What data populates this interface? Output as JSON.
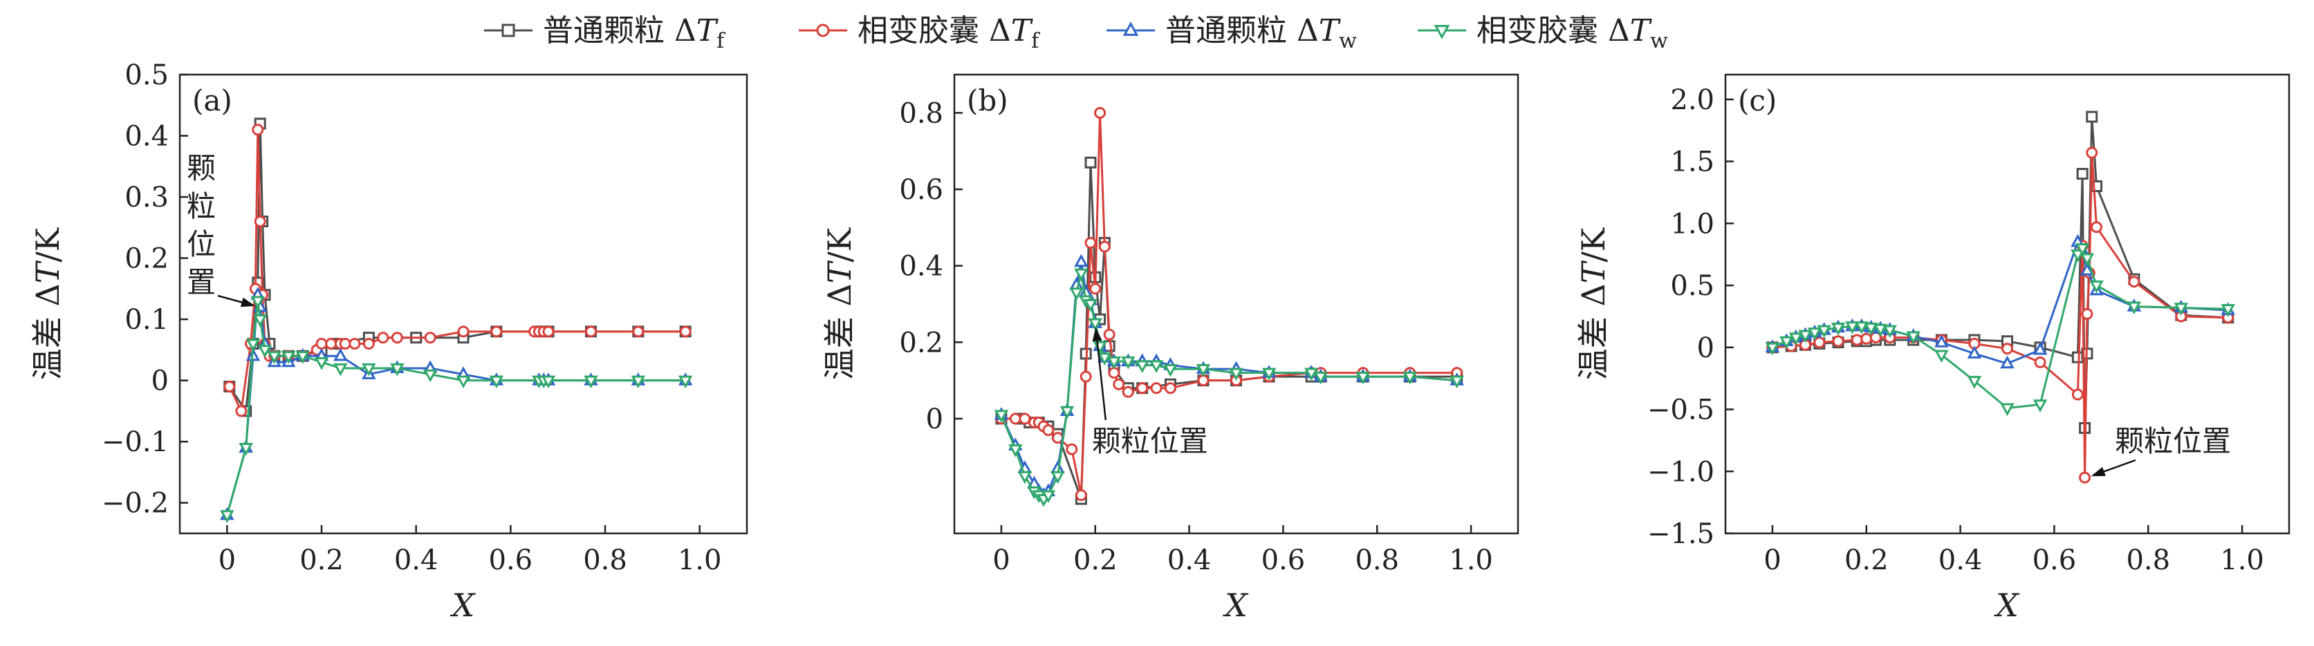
{
  "legend": [
    {
      "label": "普通颗粒 ΔTf",
      "color": "#4d4d4d",
      "marker": "square"
    },
    {
      "label": "相变胶囊 ΔTf",
      "color": "#d9403a",
      "marker": "circle"
    },
    {
      "label": "普通颗粒 ΔTw",
      "color": "#2f64c8",
      "marker": "triangle-up"
    },
    {
      "label": "相变胶囊 ΔTw",
      "color": "#2fa86a",
      "marker": "triangle-down"
    }
  ],
  "chart_data": [
    {
      "type": "line",
      "panel_label": "(a)",
      "xlabel": "X",
      "ylabel": "温差 ΔT/K",
      "xlim": [
        -0.1,
        1.1
      ],
      "ylim": [
        -0.25,
        0.5
      ],
      "xticks": [
        "0",
        "0.2",
        "0.4",
        "0.6",
        "0.8",
        "1.0"
      ],
      "xtick_values": [
        0,
        0.2,
        0.4,
        0.6,
        0.8,
        1.0
      ],
      "yticks": [
        "−0.2",
        "−0.1",
        "0",
        "0.1",
        "0.2",
        "0.3",
        "0.4",
        "0.5"
      ],
      "ytick_values": [
        -0.2,
        -0.1,
        0,
        0.1,
        0.2,
        0.3,
        0.4,
        0.5
      ],
      "annotation": {
        "text": "颗粒位置",
        "vertical": true,
        "arrow_to": [
          0.068,
          0.12
        ]
      },
      "series": [
        {
          "name": "普通颗粒 ΔTf",
          "x": [
            0.005,
            0.04,
            0.055,
            0.065,
            0.07,
            0.075,
            0.08,
            0.09,
            0.1,
            0.13,
            0.16,
            0.2,
            0.23,
            0.3,
            0.4,
            0.5,
            0.57,
            0.66,
            0.67,
            0.68,
            0.77,
            0.87,
            0.97
          ],
          "y": [
            -0.01,
            -0.05,
            0.06,
            0.16,
            0.42,
            0.26,
            0.14,
            0.06,
            0.04,
            0.04,
            0.04,
            0.05,
            0.06,
            0.07,
            0.07,
            0.07,
            0.08,
            0.08,
            0.08,
            0.08,
            0.08,
            0.08,
            0.08
          ]
        },
        {
          "name": "相变胶囊 ΔTf",
          "x": [
            0.005,
            0.03,
            0.05,
            0.06,
            0.065,
            0.07,
            0.075,
            0.08,
            0.09,
            0.1,
            0.13,
            0.16,
            0.19,
            0.2,
            0.22,
            0.24,
            0.25,
            0.27,
            0.3,
            0.33,
            0.36,
            0.43,
            0.5,
            0.57,
            0.65,
            0.66,
            0.67,
            0.68,
            0.77,
            0.87,
            0.97
          ],
          "y": [
            -0.01,
            -0.05,
            0.06,
            0.15,
            0.41,
            0.26,
            0.14,
            0.06,
            0.04,
            0.04,
            0.04,
            0.04,
            0.05,
            0.06,
            0.06,
            0.06,
            0.06,
            0.06,
            0.06,
            0.07,
            0.07,
            0.07,
            0.08,
            0.08,
            0.08,
            0.08,
            0.08,
            0.08,
            0.08,
            0.08,
            0.08
          ]
        },
        {
          "name": "普通颗粒 ΔTw",
          "x": [
            0.0,
            0.04,
            0.055,
            0.065,
            0.07,
            0.08,
            0.1,
            0.13,
            0.16,
            0.2,
            0.24,
            0.3,
            0.36,
            0.43,
            0.5,
            0.57,
            0.66,
            0.67,
            0.68,
            0.77,
            0.87,
            0.97
          ],
          "y": [
            -0.22,
            -0.11,
            0.04,
            0.14,
            0.12,
            0.06,
            0.03,
            0.03,
            0.04,
            0.04,
            0.04,
            0.01,
            0.02,
            0.02,
            0.01,
            0.0,
            0.0,
            0.0,
            0.0,
            0.0,
            0.0,
            0.0
          ]
        },
        {
          "name": "相变胶囊 ΔTw",
          "x": [
            0.0,
            0.04,
            0.055,
            0.065,
            0.07,
            0.08,
            0.1,
            0.13,
            0.16,
            0.2,
            0.24,
            0.3,
            0.36,
            0.43,
            0.5,
            0.57,
            0.66,
            0.67,
            0.68,
            0.77,
            0.87,
            0.97
          ],
          "y": [
            -0.22,
            -0.11,
            0.06,
            0.13,
            0.1,
            0.05,
            0.04,
            0.04,
            0.04,
            0.03,
            0.02,
            0.02,
            0.02,
            0.01,
            0.0,
            0.0,
            0.0,
            0.0,
            0.0,
            0.0,
            0.0,
            0.0
          ]
        }
      ]
    },
    {
      "type": "line",
      "panel_label": "(b)",
      "xlabel": "X",
      "ylabel": "温差 ΔT/K",
      "xlim": [
        -0.1,
        1.1
      ],
      "ylim": [
        -0.3,
        0.9
      ],
      "xticks": [
        "0",
        "0.2",
        "0.4",
        "0.6",
        "0.8",
        "1.0"
      ],
      "xtick_values": [
        0,
        0.2,
        0.4,
        0.6,
        0.8,
        1.0
      ],
      "yticks": [
        "0",
        "0.2",
        "0.4",
        "0.6",
        "0.8"
      ],
      "ytick_values": [
        0,
        0.2,
        0.4,
        0.6,
        0.8
      ],
      "annotation": {
        "text": "颗粒位置",
        "vertical": false,
        "arrow_to": [
          0.2,
          0.25
        ]
      },
      "series": [
        {
          "name": "普通颗粒 ΔTf",
          "x": [
            0.0,
            0.04,
            0.06,
            0.08,
            0.1,
            0.12,
            0.17,
            0.18,
            0.19,
            0.2,
            0.21,
            0.22,
            0.23,
            0.24,
            0.27,
            0.3,
            0.36,
            0.43,
            0.5,
            0.57,
            0.66,
            0.68,
            0.77,
            0.87,
            0.97
          ],
          "y": [
            0.0,
            0.0,
            -0.01,
            -0.01,
            -0.02,
            -0.04,
            -0.21,
            0.17,
            0.67,
            0.37,
            0.26,
            0.46,
            0.19,
            0.13,
            0.08,
            0.08,
            0.09,
            0.1,
            0.1,
            0.11,
            0.11,
            0.11,
            0.11,
            0.11,
            0.11
          ]
        },
        {
          "name": "相变胶囊 ΔTf",
          "x": [
            0.0,
            0.03,
            0.05,
            0.07,
            0.08,
            0.09,
            0.1,
            0.12,
            0.15,
            0.17,
            0.18,
            0.19,
            0.2,
            0.21,
            0.22,
            0.23,
            0.24,
            0.25,
            0.27,
            0.3,
            0.33,
            0.36,
            0.43,
            0.5,
            0.57,
            0.66,
            0.68,
            0.77,
            0.87,
            0.97
          ],
          "y": [
            0.0,
            0.0,
            0.0,
            -0.01,
            -0.01,
            -0.02,
            -0.03,
            -0.05,
            -0.08,
            -0.2,
            0.11,
            0.46,
            0.34,
            0.8,
            0.45,
            0.22,
            0.12,
            0.09,
            0.07,
            0.08,
            0.08,
            0.08,
            0.1,
            0.1,
            0.11,
            0.12,
            0.12,
            0.12,
            0.12,
            0.12
          ]
        },
        {
          "name": "普通颗粒 ΔTw",
          "x": [
            0.0,
            0.03,
            0.05,
            0.07,
            0.08,
            0.09,
            0.1,
            0.12,
            0.14,
            0.16,
            0.17,
            0.18,
            0.19,
            0.2,
            0.21,
            0.22,
            0.24,
            0.27,
            0.3,
            0.33,
            0.36,
            0.43,
            0.5,
            0.57,
            0.66,
            0.68,
            0.77,
            0.87,
            0.97
          ],
          "y": [
            0.01,
            -0.07,
            -0.13,
            -0.17,
            -0.19,
            -0.2,
            -0.19,
            -0.13,
            0.02,
            0.35,
            0.41,
            0.33,
            0.31,
            0.25,
            0.19,
            0.16,
            0.15,
            0.15,
            0.15,
            0.15,
            0.14,
            0.13,
            0.13,
            0.12,
            0.12,
            0.11,
            0.11,
            0.11,
            0.1
          ]
        },
        {
          "name": "相变胶囊 ΔTw",
          "x": [
            0.0,
            0.03,
            0.05,
            0.07,
            0.08,
            0.09,
            0.1,
            0.12,
            0.14,
            0.16,
            0.17,
            0.18,
            0.19,
            0.2,
            0.21,
            0.22,
            0.24,
            0.27,
            0.3,
            0.33,
            0.36,
            0.43,
            0.5,
            0.57,
            0.66,
            0.68,
            0.77,
            0.87,
            0.97
          ],
          "y": [
            0.01,
            -0.08,
            -0.15,
            -0.19,
            -0.2,
            -0.21,
            -0.2,
            -0.15,
            0.02,
            0.33,
            0.38,
            0.31,
            0.3,
            0.25,
            0.19,
            0.16,
            0.15,
            0.15,
            0.14,
            0.14,
            0.13,
            0.13,
            0.12,
            0.12,
            0.12,
            0.11,
            0.11,
            0.11,
            0.1
          ]
        }
      ]
    },
    {
      "type": "line",
      "panel_label": "(c)",
      "xlabel": "X",
      "ylabel": "温差 ΔT/K",
      "xlim": [
        -0.1,
        1.1
      ],
      "ylim": [
        -1.5,
        2.2
      ],
      "xticks": [
        "0",
        "0.2",
        "0.4",
        "0.6",
        "0.8",
        "1.0"
      ],
      "xtick_values": [
        0,
        0.2,
        0.4,
        0.6,
        0.8,
        1.0
      ],
      "yticks": [
        "−1.5",
        "−1.0",
        "−0.5",
        "0",
        "0.5",
        "1.0",
        "1.5",
        "2.0"
      ],
      "ytick_values": [
        -1.5,
        -1.0,
        -0.5,
        0,
        0.5,
        1.0,
        1.5,
        2.0
      ],
      "annotation": {
        "text": "颗粒位置",
        "vertical": false,
        "arrow_to": [
          0.67,
          -1.05
        ]
      },
      "series": [
        {
          "name": "普通颗粒 ΔTf",
          "x": [
            0.0,
            0.04,
            0.07,
            0.1,
            0.14,
            0.18,
            0.2,
            0.22,
            0.25,
            0.3,
            0.36,
            0.43,
            0.5,
            0.57,
            0.65,
            0.66,
            0.665,
            0.67,
            0.68,
            0.69,
            0.77,
            0.87,
            0.97
          ],
          "y": [
            0.0,
            0.01,
            0.02,
            0.03,
            0.04,
            0.05,
            0.05,
            0.06,
            0.06,
            0.06,
            0.06,
            0.06,
            0.05,
            0.0,
            -0.08,
            1.4,
            -0.65,
            -0.05,
            1.86,
            1.3,
            0.55,
            0.26,
            0.24
          ]
        },
        {
          "name": "相变胶囊 ΔTf",
          "x": [
            0.0,
            0.04,
            0.07,
            0.1,
            0.14,
            0.18,
            0.2,
            0.22,
            0.25,
            0.3,
            0.36,
            0.43,
            0.5,
            0.57,
            0.65,
            0.66,
            0.665,
            0.67,
            0.675,
            0.68,
            0.69,
            0.77,
            0.87,
            0.97
          ],
          "y": [
            0.0,
            0.01,
            0.02,
            0.04,
            0.05,
            0.06,
            0.07,
            0.08,
            0.08,
            0.08,
            0.06,
            0.03,
            -0.01,
            -0.12,
            -0.38,
            0.82,
            -1.05,
            0.27,
            0.6,
            1.57,
            0.97,
            0.53,
            0.25,
            0.24
          ]
        },
        {
          "name": "普通颗粒 ΔTw",
          "x": [
            0.0,
            0.03,
            0.05,
            0.07,
            0.09,
            0.11,
            0.14,
            0.17,
            0.19,
            0.21,
            0.23,
            0.25,
            0.3,
            0.36,
            0.43,
            0.5,
            0.57,
            0.65,
            0.66,
            0.67,
            0.69,
            0.77,
            0.87,
            0.97
          ],
          "y": [
            0.0,
            0.05,
            0.08,
            0.1,
            0.12,
            0.14,
            0.16,
            0.17,
            0.17,
            0.16,
            0.15,
            0.14,
            0.09,
            0.04,
            -0.05,
            -0.13,
            -0.02,
            0.85,
            0.78,
            0.62,
            0.46,
            0.33,
            0.32,
            0.3
          ]
        },
        {
          "name": "相变胶囊 ΔTw",
          "x": [
            0.0,
            0.03,
            0.05,
            0.07,
            0.09,
            0.11,
            0.14,
            0.17,
            0.19,
            0.21,
            0.23,
            0.25,
            0.3,
            0.36,
            0.43,
            0.5,
            0.57,
            0.65,
            0.66,
            0.67,
            0.69,
            0.77,
            0.87,
            0.97
          ],
          "y": [
            0.0,
            0.05,
            0.08,
            0.1,
            0.12,
            0.14,
            0.16,
            0.17,
            0.17,
            0.16,
            0.15,
            0.14,
            0.09,
            -0.06,
            -0.27,
            -0.49,
            -0.46,
            0.75,
            0.8,
            0.72,
            0.5,
            0.33,
            0.32,
            0.31
          ]
        }
      ]
    }
  ]
}
